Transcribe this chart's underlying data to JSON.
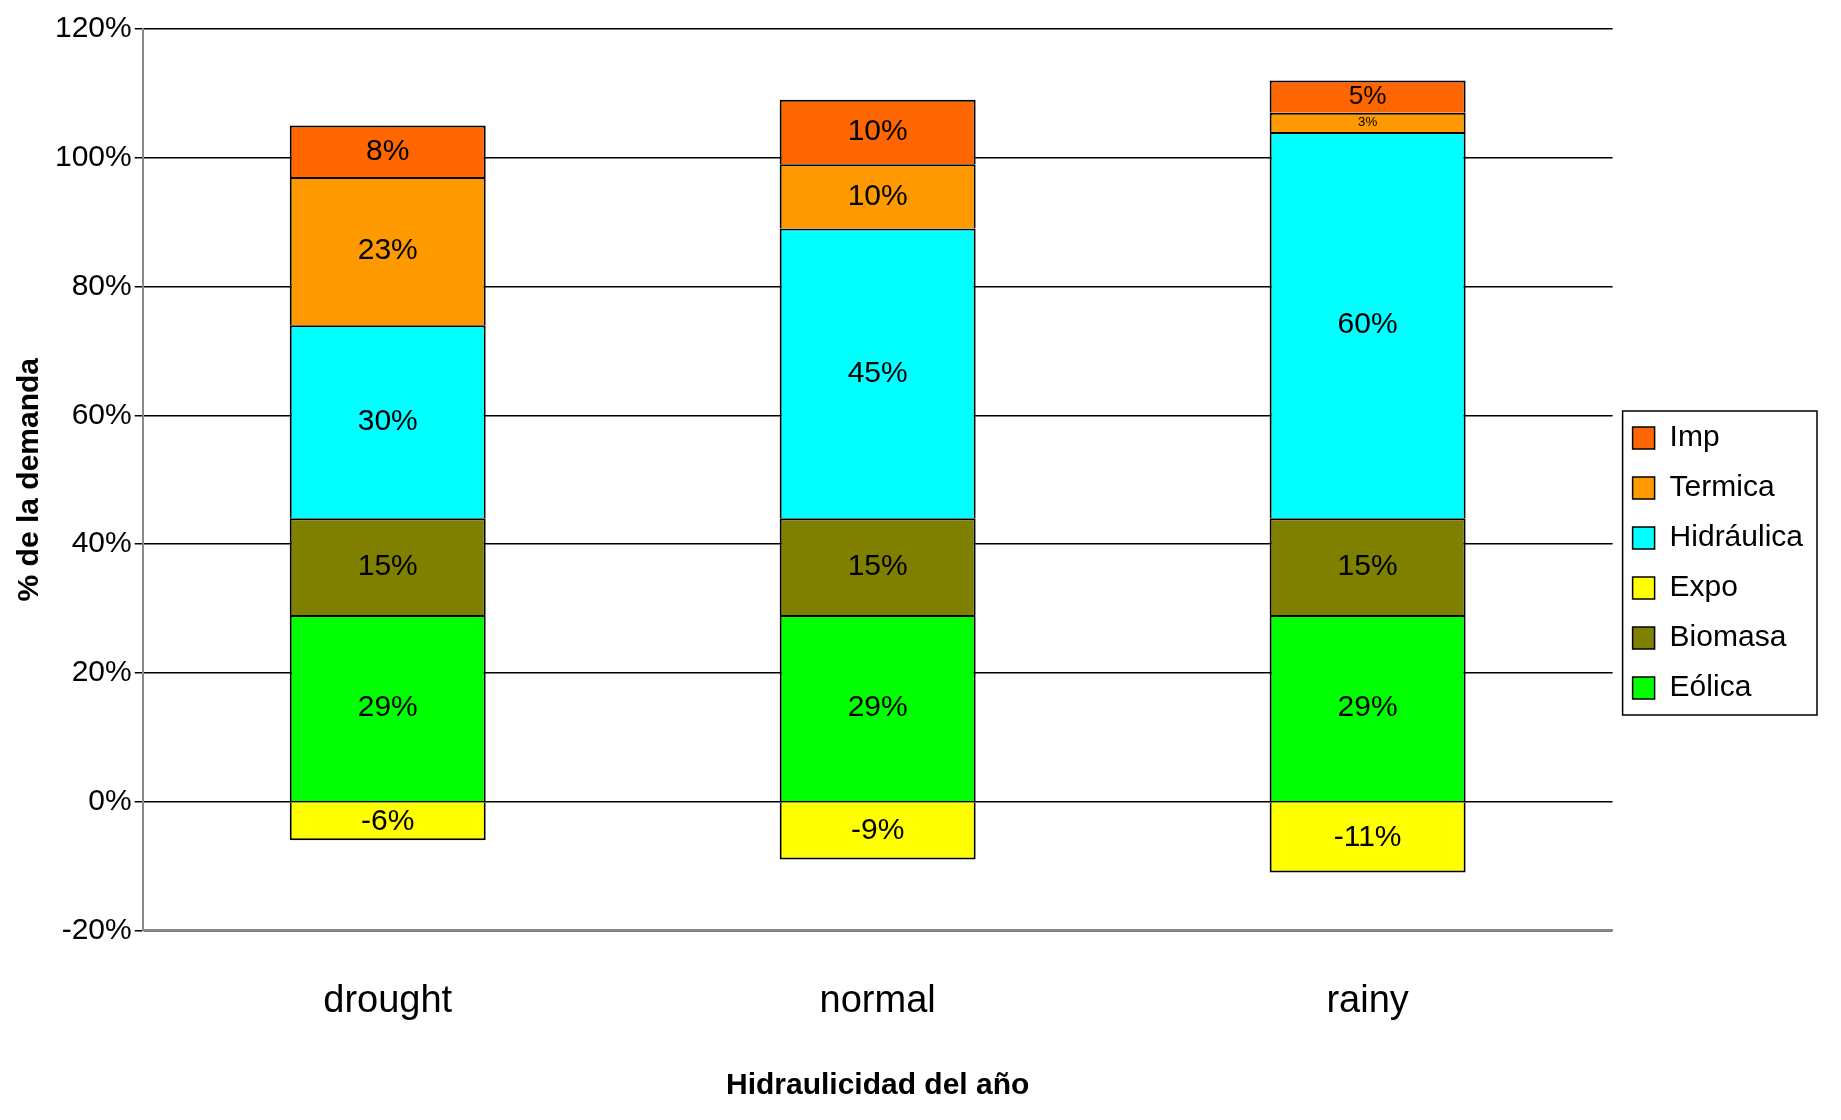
{
  "chart_data": {
    "type": "bar",
    "stacked": true,
    "xlabel": "Hidraulicidad del año",
    "ylabel": "% de la demanda",
    "categories": [
      "drought",
      "normal",
      "rainy"
    ],
    "series": [
      {
        "name": "Eólica",
        "color": "#00ff00",
        "values": [
          29,
          29,
          29
        ],
        "value_labels": [
          "29%",
          "29%",
          "29%"
        ]
      },
      {
        "name": "Biomasa",
        "color": "#808000",
        "values": [
          15,
          15,
          15
        ],
        "value_labels": [
          "15%",
          "15%",
          "15%"
        ]
      },
      {
        "name": "Expo",
        "color": "#ffff00",
        "values": [
          -6,
          -9,
          -11
        ],
        "value_labels": [
          "-6%",
          "-9%",
          "-11%"
        ]
      },
      {
        "name": "Hidráulica",
        "color": "#00ffff",
        "values": [
          30,
          45,
          60
        ],
        "value_labels": [
          "30%",
          "45%",
          "60%"
        ]
      },
      {
        "name": "Termica",
        "color": "#ff9900",
        "values": [
          23,
          10,
          3
        ],
        "value_labels": [
          "23%",
          "10%",
          "3%"
        ]
      },
      {
        "name": "Imp",
        "color": "#ff6600",
        "values": [
          8,
          10,
          5
        ],
        "value_labels": [
          "8%",
          "10%",
          "5%"
        ]
      }
    ],
    "ylim": [
      -20,
      120
    ],
    "yticks": [
      {
        "value": -20,
        "label": "-20%"
      },
      {
        "value": 0,
        "label": "0%"
      },
      {
        "value": 20,
        "label": "20%"
      },
      {
        "value": 40,
        "label": "40%"
      },
      {
        "value": 60,
        "label": "60%"
      },
      {
        "value": 80,
        "label": "80%"
      },
      {
        "value": 100,
        "label": "100%"
      },
      {
        "value": 120,
        "label": "120%"
      }
    ],
    "grid": "y",
    "legend": "right"
  }
}
